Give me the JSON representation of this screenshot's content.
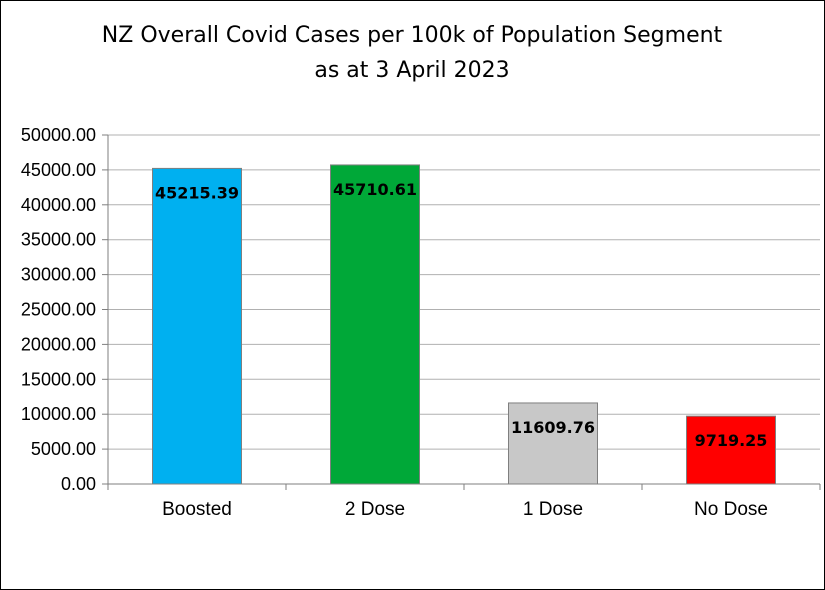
{
  "chart_data": {
    "type": "bar",
    "title": "NZ Overall Covid Cases per 100k of Population Segment",
    "subtitle": "as at 3 April 2023",
    "categories": [
      "Boosted",
      "2 Dose",
      "1 Dose",
      "No Dose"
    ],
    "values": [
      45215.39,
      45710.61,
      11609.76,
      9719.25
    ],
    "data_labels": [
      "45215.39",
      "45710.61",
      "11609.76",
      "9719.25"
    ],
    "colors": [
      "#00B0F0",
      "#00A838",
      "#C8C8C8",
      "#FF0000"
    ],
    "xlabel": "",
    "ylabel": "",
    "ylim": [
      0,
      50000
    ],
    "yticks": [
      0,
      5000,
      10000,
      15000,
      20000,
      25000,
      30000,
      35000,
      40000,
      45000,
      50000
    ],
    "ytick_labels": [
      "0.00",
      "5000.00",
      "10000.00",
      "15000.00",
      "20000.00",
      "25000.00",
      "30000.00",
      "35000.00",
      "40000.00",
      "45000.00",
      "50000.00"
    ],
    "grid": true,
    "legend": "none"
  }
}
